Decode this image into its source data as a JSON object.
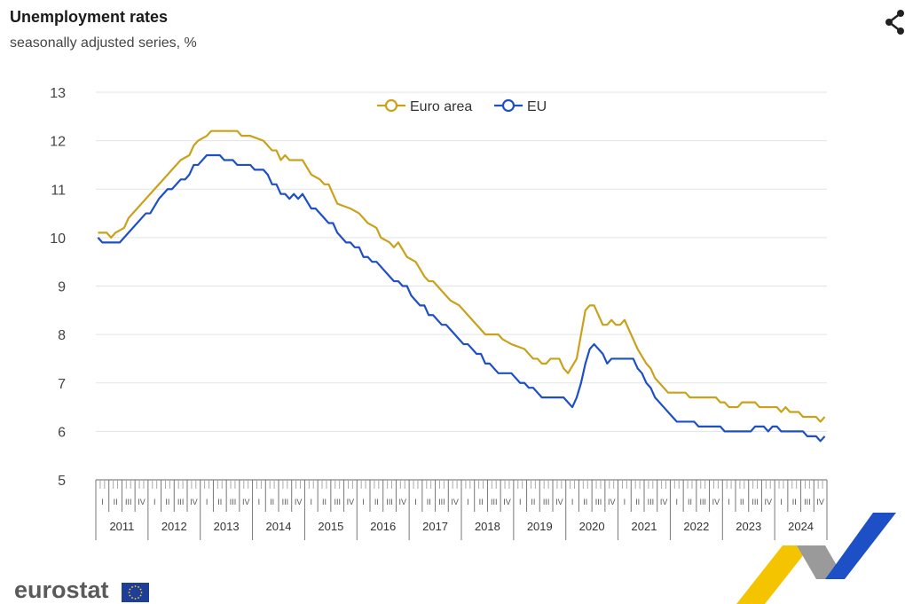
{
  "header": {
    "title": "Unemployment rates",
    "subtitle": "seasonally adjusted series, %"
  },
  "branding": {
    "logo_text": "eurostat"
  },
  "icons": {
    "share": "share-icon",
    "flag": "eu-flag-icon"
  },
  "colors": {
    "euro_area": "#c9a21a",
    "eu": "#1d4fc6",
    "grid": "#e3e3e3",
    "axis": "#666666"
  },
  "chart_data": {
    "type": "line",
    "title": "Unemployment rates",
    "subtitle": "seasonally adjusted series, %",
    "ylim": [
      5,
      13
    ],
    "yticks": [
      "5",
      "6",
      "7",
      "8",
      "9",
      "10",
      "11",
      "12",
      "13"
    ],
    "grid": true,
    "legend_position": "top-center",
    "x_start": "2011-01",
    "x_end": "2024-12",
    "years": [
      "2011",
      "2012",
      "2013",
      "2014",
      "2015",
      "2016",
      "2017",
      "2018",
      "2019",
      "2020",
      "2021",
      "2022",
      "2023",
      "2024"
    ],
    "quarter_labels": [
      "I",
      "II",
      "III",
      "IV"
    ],
    "series": [
      {
        "name": "Euro area",
        "color": "#c9a21a",
        "points": [
          [
            "2011-01",
            10.1
          ],
          [
            "2011-03",
            10.1
          ],
          [
            "2011-04",
            10.0
          ],
          [
            "2011-05",
            10.1
          ],
          [
            "2011-07",
            10.2
          ],
          [
            "2011-08",
            10.4
          ],
          [
            "2011-12",
            10.8
          ],
          [
            "2012-03",
            11.1
          ],
          [
            "2012-04",
            11.2
          ],
          [
            "2012-06",
            11.4
          ],
          [
            "2012-08",
            11.6
          ],
          [
            "2012-10",
            11.7
          ],
          [
            "2012-11",
            11.9
          ],
          [
            "2012-12",
            12.0
          ],
          [
            "2013-02",
            12.1
          ],
          [
            "2013-03",
            12.2
          ],
          [
            "2013-09",
            12.2
          ],
          [
            "2013-10",
            12.1
          ],
          [
            "2013-12",
            12.1
          ],
          [
            "2014-03",
            12.0
          ],
          [
            "2014-05",
            11.8
          ],
          [
            "2014-06",
            11.8
          ],
          [
            "2014-07",
            11.6
          ],
          [
            "2014-08",
            11.7
          ],
          [
            "2014-09",
            11.6
          ],
          [
            "2014-12",
            11.6
          ],
          [
            "2015-02",
            11.3
          ],
          [
            "2015-04",
            11.2
          ],
          [
            "2015-05",
            11.1
          ],
          [
            "2015-06",
            11.1
          ],
          [
            "2015-08",
            10.7
          ],
          [
            "2015-11",
            10.6
          ],
          [
            "2016-01",
            10.5
          ],
          [
            "2016-03",
            10.3
          ],
          [
            "2016-05",
            10.2
          ],
          [
            "2016-06",
            10.0
          ],
          [
            "2016-08",
            9.9
          ],
          [
            "2016-09",
            9.8
          ],
          [
            "2016-10",
            9.9
          ],
          [
            "2016-12",
            9.6
          ],
          [
            "2017-02",
            9.5
          ],
          [
            "2017-04",
            9.2
          ],
          [
            "2017-05",
            9.1
          ],
          [
            "2017-06",
            9.1
          ],
          [
            "2017-08",
            8.9
          ],
          [
            "2017-10",
            8.7
          ],
          [
            "2017-12",
            8.6
          ],
          [
            "2018-02",
            8.4
          ],
          [
            "2018-05",
            8.1
          ],
          [
            "2018-06",
            8.0
          ],
          [
            "2018-09",
            8.0
          ],
          [
            "2018-10",
            7.9
          ],
          [
            "2018-12",
            7.8
          ],
          [
            "2019-03",
            7.7
          ],
          [
            "2019-05",
            7.5
          ],
          [
            "2019-06",
            7.5
          ],
          [
            "2019-07",
            7.4
          ],
          [
            "2019-08",
            7.4
          ],
          [
            "2019-09",
            7.5
          ],
          [
            "2019-11",
            7.5
          ],
          [
            "2019-12",
            7.3
          ],
          [
            "2020-01",
            7.2
          ],
          [
            "2020-03",
            7.5
          ],
          [
            "2020-05",
            8.5
          ],
          [
            "2020-06",
            8.6
          ],
          [
            "2020-07",
            8.6
          ],
          [
            "2020-09",
            8.2
          ],
          [
            "2020-10",
            8.2
          ],
          [
            "2020-11",
            8.3
          ],
          [
            "2020-12",
            8.2
          ],
          [
            "2021-01",
            8.2
          ],
          [
            "2021-02",
            8.3
          ],
          [
            "2021-04",
            7.9
          ],
          [
            "2021-05",
            7.7
          ],
          [
            "2021-07",
            7.4
          ],
          [
            "2021-08",
            7.3
          ],
          [
            "2021-09",
            7.1
          ],
          [
            "2021-12",
            6.8
          ],
          [
            "2022-04",
            6.8
          ],
          [
            "2022-05",
            6.7
          ],
          [
            "2022-11",
            6.7
          ],
          [
            "2022-12",
            6.6
          ],
          [
            "2023-01",
            6.6
          ],
          [
            "2023-02",
            6.5
          ],
          [
            "2023-04",
            6.5
          ],
          [
            "2023-05",
            6.6
          ],
          [
            "2023-08",
            6.6
          ],
          [
            "2023-09",
            6.5
          ],
          [
            "2024-01",
            6.5
          ],
          [
            "2024-02",
            6.4
          ],
          [
            "2024-03",
            6.5
          ],
          [
            "2024-04",
            6.4
          ],
          [
            "2024-06",
            6.4
          ],
          [
            "2024-07",
            6.3
          ],
          [
            "2024-10",
            6.3
          ],
          [
            "2024-11",
            6.2
          ],
          [
            "2024-12",
            6.3
          ]
        ]
      },
      {
        "name": "EU",
        "color": "#1d4fc6",
        "points": [
          [
            "2011-01",
            10.0
          ],
          [
            "2011-02",
            9.9
          ],
          [
            "2011-06",
            9.9
          ],
          [
            "2011-07",
            10.0
          ],
          [
            "2011-12",
            10.5
          ],
          [
            "2012-01",
            10.5
          ],
          [
            "2012-03",
            10.8
          ],
          [
            "2012-05",
            11.0
          ],
          [
            "2012-06",
            11.0
          ],
          [
            "2012-08",
            11.2
          ],
          [
            "2012-09",
            11.2
          ],
          [
            "2012-10",
            11.3
          ],
          [
            "2012-11",
            11.5
          ],
          [
            "2012-12",
            11.5
          ],
          [
            "2013-02",
            11.7
          ],
          [
            "2013-05",
            11.7
          ],
          [
            "2013-06",
            11.6
          ],
          [
            "2013-08",
            11.6
          ],
          [
            "2013-09",
            11.5
          ],
          [
            "2013-12",
            11.5
          ],
          [
            "2014-01",
            11.4
          ],
          [
            "2014-03",
            11.4
          ],
          [
            "2014-04",
            11.3
          ],
          [
            "2014-05",
            11.1
          ],
          [
            "2014-06",
            11.1
          ],
          [
            "2014-07",
            10.9
          ],
          [
            "2014-08",
            10.9
          ],
          [
            "2014-09",
            10.8
          ],
          [
            "2014-10",
            10.9
          ],
          [
            "2014-11",
            10.8
          ],
          [
            "2014-12",
            10.9
          ],
          [
            "2015-02",
            10.6
          ],
          [
            "2015-03",
            10.6
          ],
          [
            "2015-05",
            10.4
          ],
          [
            "2015-06",
            10.3
          ],
          [
            "2015-07",
            10.3
          ],
          [
            "2015-08",
            10.1
          ],
          [
            "2015-10",
            9.9
          ],
          [
            "2015-11",
            9.9
          ],
          [
            "2015-12",
            9.8
          ],
          [
            "2016-01",
            9.8
          ],
          [
            "2016-02",
            9.6
          ],
          [
            "2016-03",
            9.6
          ],
          [
            "2016-04",
            9.5
          ],
          [
            "2016-05",
            9.5
          ],
          [
            "2016-08",
            9.2
          ],
          [
            "2016-09",
            9.1
          ],
          [
            "2016-10",
            9.1
          ],
          [
            "2016-11",
            9.0
          ],
          [
            "2016-12",
            9.0
          ],
          [
            "2017-01",
            8.8
          ],
          [
            "2017-03",
            8.6
          ],
          [
            "2017-04",
            8.6
          ],
          [
            "2017-05",
            8.4
          ],
          [
            "2017-06",
            8.4
          ],
          [
            "2017-08",
            8.2
          ],
          [
            "2017-09",
            8.2
          ],
          [
            "2017-12",
            7.9
          ],
          [
            "2018-01",
            7.8
          ],
          [
            "2018-02",
            7.8
          ],
          [
            "2018-04",
            7.6
          ],
          [
            "2018-05",
            7.6
          ],
          [
            "2018-06",
            7.4
          ],
          [
            "2018-07",
            7.4
          ],
          [
            "2018-09",
            7.2
          ],
          [
            "2018-12",
            7.2
          ],
          [
            "2019-02",
            7.0
          ],
          [
            "2019-03",
            7.0
          ],
          [
            "2019-04",
            6.9
          ],
          [
            "2019-05",
            6.9
          ],
          [
            "2019-06",
            6.8
          ],
          [
            "2019-07",
            6.7
          ],
          [
            "2019-12",
            6.7
          ],
          [
            "2020-01",
            6.6
          ],
          [
            "2020-02",
            6.5
          ],
          [
            "2020-03",
            6.7
          ],
          [
            "2020-04",
            7.0
          ],
          [
            "2020-05",
            7.4
          ],
          [
            "2020-06",
            7.7
          ],
          [
            "2020-07",
            7.8
          ],
          [
            "2020-09",
            7.6
          ],
          [
            "2020-10",
            7.4
          ],
          [
            "2020-11",
            7.5
          ],
          [
            "2021-04",
            7.5
          ],
          [
            "2021-05",
            7.3
          ],
          [
            "2021-06",
            7.2
          ],
          [
            "2021-07",
            7.0
          ],
          [
            "2021-08",
            6.9
          ],
          [
            "2021-09",
            6.7
          ],
          [
            "2021-11",
            6.5
          ],
          [
            "2022-01",
            6.3
          ],
          [
            "2022-02",
            6.2
          ],
          [
            "2022-06",
            6.2
          ],
          [
            "2022-07",
            6.1
          ],
          [
            "2022-12",
            6.1
          ],
          [
            "2023-01",
            6.0
          ],
          [
            "2023-07",
            6.0
          ],
          [
            "2023-08",
            6.1
          ],
          [
            "2023-10",
            6.1
          ],
          [
            "2023-11",
            6.0
          ],
          [
            "2023-12",
            6.1
          ],
          [
            "2024-01",
            6.1
          ],
          [
            "2024-02",
            6.0
          ],
          [
            "2024-07",
            6.0
          ],
          [
            "2024-08",
            5.9
          ],
          [
            "2024-10",
            5.9
          ],
          [
            "2024-11",
            5.8
          ],
          [
            "2024-12",
            5.9
          ]
        ]
      }
    ]
  }
}
